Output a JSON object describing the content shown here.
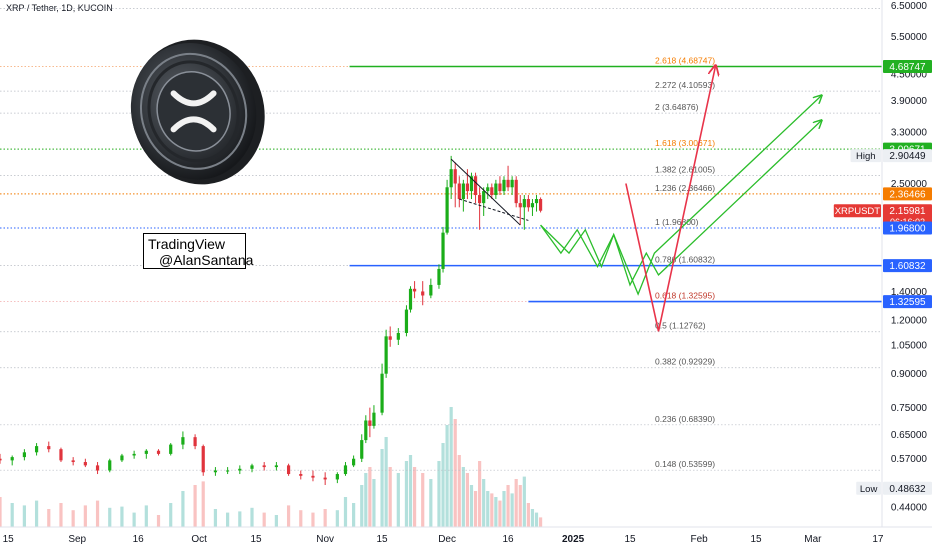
{
  "header": {
    "symbol": "XRP / Tether, 1D, KUCOIN"
  },
  "watermark": {
    "line1": "TradingView",
    "line2": "@AlanSantana"
  },
  "colors": {
    "candle_up": "#26a69a",
    "candle_up_bright": "#1aad19",
    "candle_down": "#e0343d",
    "price_red": "#e53935",
    "green_level": "#20b020",
    "blue_level": "#2962ff",
    "orange_level": "#f57c00",
    "fib_text": "#555555",
    "fib_orange": "#f57c00",
    "arrow_red": "#e8344a",
    "arrow_green": "#2bbd2b"
  },
  "chart_data": {
    "type": "candlestick",
    "title": "",
    "yscale": "log",
    "ylim": [
      0.395,
      6.7
    ],
    "y_ticks": [
      "6.50000",
      "5.50000",
      "4.50000",
      "3.90000",
      "3.30000",
      "2.90000",
      "2.50000",
      "1.40000",
      "1.20000",
      "1.05000",
      "0.90000",
      "0.75000",
      "0.65000",
      "0.57000",
      "0.44000"
    ],
    "x_ticks": [
      "15",
      "Sep",
      "16",
      "Oct",
      "15",
      "Nov",
      "15",
      "Dec",
      "16",
      "2025",
      "15",
      "Feb",
      "15",
      "Mar",
      "17"
    ],
    "x_range_dates": [
      "2024-08-13",
      "2025-03-18"
    ],
    "fib_levels": [
      {
        "ratio": "2.618",
        "text": "2.618 (4.68747)",
        "value": 4.68747,
        "color": "orange"
      },
      {
        "ratio": "2.272",
        "text": "2.272 (4.10593)",
        "value": 4.10593,
        "color": "gray"
      },
      {
        "ratio": "2",
        "text": "2 (3.64876)",
        "value": 3.64876,
        "color": "gray"
      },
      {
        "ratio": "1.618",
        "text": "1.618 (3.00671)",
        "value": 3.00671,
        "color": "orange"
      },
      {
        "ratio": "1.382",
        "text": "1.382 (2.61005)",
        "value": 2.61005,
        "color": "gray"
      },
      {
        "ratio": "1.236",
        "text": "1.236 (2.36466)",
        "value": 2.36466,
        "color": "gray"
      },
      {
        "ratio": "1",
        "text": "1 (1.96800)",
        "value": 1.968,
        "color": "gray"
      },
      {
        "ratio": "0.786",
        "text": "0.786 (1.60832)",
        "value": 1.60832,
        "color": "gray"
      },
      {
        "ratio": "0.618",
        "text": "0.618 (1.32595)",
        "value": 1.32595,
        "color": "red"
      },
      {
        "ratio": "0.5",
        "text": "0.5 (1.12762)",
        "value": 1.12762,
        "color": "gray"
      },
      {
        "ratio": "0.382",
        "text": "0.382 (0.92929)",
        "value": 0.92929,
        "color": "gray"
      },
      {
        "ratio": "0.236",
        "text": "0.236 (0.68390)",
        "value": 0.6839,
        "color": "gray"
      },
      {
        "ratio": "0.148",
        "text": "0.148 (0.53599)",
        "value": 0.53599,
        "color": "gray"
      }
    ],
    "price_badges": [
      {
        "text": "4.68747",
        "value": 4.68747,
        "bg": "#22b022",
        "fg": "#ffffff"
      },
      {
        "text": "3.00671",
        "value": 3.00671,
        "bg": "#22b022",
        "fg": "#ffffff"
      },
      {
        "text": "2.90449",
        "value": 2.90449,
        "bg": "#eceff3",
        "fg": "#131722",
        "tag": "High"
      },
      {
        "text": "2.36466",
        "value": 2.36466,
        "bg": "#f57c00",
        "fg": "#ffffff"
      },
      {
        "text": "2.15981",
        "value": 2.15981,
        "bg": "#e53935",
        "fg": "#ffffff",
        "tag": "XRPUSDT",
        "sub": "06:16:02"
      },
      {
        "text": "1.96800",
        "value": 1.968,
        "bg": "#2962ff",
        "fg": "#ffffff"
      },
      {
        "text": "1.60832",
        "value": 1.60832,
        "bg": "#2962ff",
        "fg": "#ffffff"
      },
      {
        "text": "1.32595",
        "value": 1.32595,
        "bg": "#2962ff",
        "fg": "#ffffff"
      },
      {
        "text": "0.48632",
        "value": 0.48632,
        "bg": "#eceff3",
        "fg": "#131722",
        "tag": "Low"
      }
    ],
    "horizontal_lines": [
      {
        "value": 4.68747,
        "style": "solid",
        "color": "green",
        "from_date": "2024-11-07"
      },
      {
        "value": 3.00671,
        "style": "dotted",
        "color": "green"
      },
      {
        "value": 2.36466,
        "style": "dotted",
        "color": "orange"
      },
      {
        "value": 1.968,
        "style": "dotted",
        "color": "blue"
      },
      {
        "value": 1.60832,
        "style": "solid",
        "color": "blue",
        "from_date": "2024-11-07"
      },
      {
        "value": 1.32595,
        "style": "solid",
        "color": "blue",
        "from_date": "2024-12-21"
      }
    ],
    "candles": [
      {
        "d": "2024-08-13",
        "o": 0.57,
        "h": 0.585,
        "l": 0.555,
        "c": 0.565
      },
      {
        "d": "2024-08-16",
        "o": 0.565,
        "h": 0.58,
        "l": 0.55,
        "c": 0.575
      },
      {
        "d": "2024-08-19",
        "o": 0.575,
        "h": 0.6,
        "l": 0.565,
        "c": 0.59
      },
      {
        "d": "2024-08-22",
        "o": 0.59,
        "h": 0.62,
        "l": 0.58,
        "c": 0.61
      },
      {
        "d": "2024-08-25",
        "o": 0.61,
        "h": 0.625,
        "l": 0.59,
        "c": 0.6
      },
      {
        "d": "2024-08-28",
        "o": 0.6,
        "h": 0.605,
        "l": 0.56,
        "c": 0.565
      },
      {
        "d": "2024-08-31",
        "o": 0.565,
        "h": 0.575,
        "l": 0.55,
        "c": 0.56
      },
      {
        "d": "2024-09-03",
        "o": 0.56,
        "h": 0.57,
        "l": 0.545,
        "c": 0.55
      },
      {
        "d": "2024-09-06",
        "o": 0.55,
        "h": 0.56,
        "l": 0.525,
        "c": 0.535
      },
      {
        "d": "2024-09-09",
        "o": 0.535,
        "h": 0.57,
        "l": 0.53,
        "c": 0.565
      },
      {
        "d": "2024-09-12",
        "o": 0.565,
        "h": 0.585,
        "l": 0.56,
        "c": 0.58
      },
      {
        "d": "2024-09-15",
        "o": 0.58,
        "h": 0.595,
        "l": 0.57,
        "c": 0.585
      },
      {
        "d": "2024-09-18",
        "o": 0.585,
        "h": 0.6,
        "l": 0.57,
        "c": 0.595
      },
      {
        "d": "2024-09-21",
        "o": 0.595,
        "h": 0.6,
        "l": 0.58,
        "c": 0.585
      },
      {
        "d": "2024-09-24",
        "o": 0.585,
        "h": 0.62,
        "l": 0.58,
        "c": 0.615
      },
      {
        "d": "2024-09-27",
        "o": 0.615,
        "h": 0.66,
        "l": 0.6,
        "c": 0.64
      },
      {
        "d": "2024-09-30",
        "o": 0.64,
        "h": 0.65,
        "l": 0.6,
        "c": 0.61
      },
      {
        "d": "2024-10-02",
        "o": 0.61,
        "h": 0.615,
        "l": 0.52,
        "c": 0.53
      },
      {
        "d": "2024-10-05",
        "o": 0.53,
        "h": 0.545,
        "l": 0.52,
        "c": 0.535
      },
      {
        "d": "2024-10-08",
        "o": 0.535,
        "h": 0.545,
        "l": 0.525,
        "c": 0.535
      },
      {
        "d": "2024-10-11",
        "o": 0.535,
        "h": 0.55,
        "l": 0.525,
        "c": 0.54
      },
      {
        "d": "2024-10-14",
        "o": 0.54,
        "h": 0.555,
        "l": 0.53,
        "c": 0.55
      },
      {
        "d": "2024-10-17",
        "o": 0.55,
        "h": 0.56,
        "l": 0.535,
        "c": 0.545
      },
      {
        "d": "2024-10-20",
        "o": 0.545,
        "h": 0.56,
        "l": 0.535,
        "c": 0.55
      },
      {
        "d": "2024-10-23",
        "o": 0.55,
        "h": 0.555,
        "l": 0.52,
        "c": 0.525
      },
      {
        "d": "2024-10-26",
        "o": 0.525,
        "h": 0.535,
        "l": 0.51,
        "c": 0.52
      },
      {
        "d": "2024-10-29",
        "o": 0.52,
        "h": 0.535,
        "l": 0.505,
        "c": 0.515
      },
      {
        "d": "2024-11-01",
        "o": 0.515,
        "h": 0.53,
        "l": 0.495,
        "c": 0.51
      },
      {
        "d": "2024-11-04",
        "o": 0.51,
        "h": 0.53,
        "l": 0.5,
        "c": 0.525
      },
      {
        "d": "2024-11-06",
        "o": 0.525,
        "h": 0.56,
        "l": 0.52,
        "c": 0.55
      },
      {
        "d": "2024-11-08",
        "o": 0.55,
        "h": 0.58,
        "l": 0.545,
        "c": 0.57
      },
      {
        "d": "2024-11-10",
        "o": 0.57,
        "h": 0.65,
        "l": 0.56,
        "c": 0.63
      },
      {
        "d": "2024-11-11",
        "o": 0.63,
        "h": 0.72,
        "l": 0.62,
        "c": 0.7
      },
      {
        "d": "2024-11-12",
        "o": 0.7,
        "h": 0.75,
        "l": 0.64,
        "c": 0.68
      },
      {
        "d": "2024-11-13",
        "o": 0.68,
        "h": 0.76,
        "l": 0.67,
        "c": 0.73
      },
      {
        "d": "2024-11-15",
        "o": 0.73,
        "h": 0.95,
        "l": 0.72,
        "c": 0.9
      },
      {
        "d": "2024-11-16",
        "o": 0.9,
        "h": 1.14,
        "l": 0.88,
        "c": 1.1
      },
      {
        "d": "2024-11-17",
        "o": 1.1,
        "h": 1.16,
        "l": 1.04,
        "c": 1.08
      },
      {
        "d": "2024-11-19",
        "o": 1.08,
        "h": 1.15,
        "l": 1.05,
        "c": 1.12
      },
      {
        "d": "2024-11-21",
        "o": 1.12,
        "h": 1.3,
        "l": 1.1,
        "c": 1.27
      },
      {
        "d": "2024-11-22",
        "o": 1.27,
        "h": 1.44,
        "l": 1.25,
        "c": 1.42
      },
      {
        "d": "2024-11-23",
        "o": 1.42,
        "h": 1.48,
        "l": 1.35,
        "c": 1.4
      },
      {
        "d": "2024-11-25",
        "o": 1.4,
        "h": 1.48,
        "l": 1.3,
        "c": 1.37
      },
      {
        "d": "2024-11-27",
        "o": 1.37,
        "h": 1.5,
        "l": 1.35,
        "c": 1.45
      },
      {
        "d": "2024-11-29",
        "o": 1.45,
        "h": 1.62,
        "l": 1.42,
        "c": 1.58
      },
      {
        "d": "2024-11-30",
        "o": 1.58,
        "h": 1.98,
        "l": 1.55,
        "c": 1.92
      },
      {
        "d": "2024-12-01",
        "o": 1.92,
        "h": 2.55,
        "l": 1.9,
        "c": 2.45
      },
      {
        "d": "2024-12-02",
        "o": 2.45,
        "h": 2.9,
        "l": 2.3,
        "c": 2.7
      },
      {
        "d": "2024-12-03",
        "o": 2.7,
        "h": 2.8,
        "l": 2.2,
        "c": 2.5
      },
      {
        "d": "2024-12-04",
        "o": 2.5,
        "h": 2.6,
        "l": 2.2,
        "c": 2.3
      },
      {
        "d": "2024-12-05",
        "o": 2.3,
        "h": 2.55,
        "l": 2.15,
        "c": 2.5
      },
      {
        "d": "2024-12-06",
        "o": 2.5,
        "h": 2.7,
        "l": 2.3,
        "c": 2.4
      },
      {
        "d": "2024-12-07",
        "o": 2.4,
        "h": 2.65,
        "l": 2.3,
        "c": 2.6
      },
      {
        "d": "2024-12-08",
        "o": 2.6,
        "h": 2.65,
        "l": 2.25,
        "c": 2.35
      },
      {
        "d": "2024-12-09",
        "o": 2.35,
        "h": 2.45,
        "l": 1.95,
        "c": 2.25
      },
      {
        "d": "2024-12-10",
        "o": 2.25,
        "h": 2.45,
        "l": 2.1,
        "c": 2.4
      },
      {
        "d": "2024-12-11",
        "o": 2.4,
        "h": 2.5,
        "l": 2.3,
        "c": 2.45
      },
      {
        "d": "2024-12-12",
        "o": 2.45,
        "h": 2.5,
        "l": 2.3,
        "c": 2.35
      },
      {
        "d": "2024-12-13",
        "o": 2.35,
        "h": 2.55,
        "l": 2.3,
        "c": 2.5
      },
      {
        "d": "2024-12-14",
        "o": 2.5,
        "h": 2.6,
        "l": 2.35,
        "c": 2.4
      },
      {
        "d": "2024-12-15",
        "o": 2.4,
        "h": 2.6,
        "l": 2.35,
        "c": 2.55
      },
      {
        "d": "2024-12-16",
        "o": 2.55,
        "h": 2.75,
        "l": 2.4,
        "c": 2.45
      },
      {
        "d": "2024-12-17",
        "o": 2.45,
        "h": 2.6,
        "l": 2.35,
        "c": 2.55
      },
      {
        "d": "2024-12-18",
        "o": 2.55,
        "h": 2.6,
        "l": 2.2,
        "c": 2.25
      },
      {
        "d": "2024-12-19",
        "o": 2.25,
        "h": 2.35,
        "l": 2.0,
        "c": 2.2
      },
      {
        "d": "2024-12-20",
        "o": 2.2,
        "h": 2.35,
        "l": 1.95,
        "c": 2.3
      },
      {
        "d": "2024-12-21",
        "o": 2.3,
        "h": 2.35,
        "l": 2.15,
        "c": 2.2
      },
      {
        "d": "2024-12-22",
        "o": 2.2,
        "h": 2.3,
        "l": 2.1,
        "c": 2.25
      },
      {
        "d": "2024-12-23",
        "o": 2.25,
        "h": 2.35,
        "l": 2.15,
        "c": 2.3
      },
      {
        "d": "2024-12-24",
        "o": 2.3,
        "h": 2.32,
        "l": 2.14,
        "c": 2.16
      }
    ],
    "volume": [
      {
        "d": "2024-08-13",
        "v": 0.25
      },
      {
        "d": "2024-08-16",
        "v": 0.2
      },
      {
        "d": "2024-08-19",
        "v": 0.18
      },
      {
        "d": "2024-08-22",
        "v": 0.22
      },
      {
        "d": "2024-08-25",
        "v": 0.15
      },
      {
        "d": "2024-08-28",
        "v": 0.2
      },
      {
        "d": "2024-08-31",
        "v": 0.14
      },
      {
        "d": "2024-09-03",
        "v": 0.18
      },
      {
        "d": "2024-09-06",
        "v": 0.22
      },
      {
        "d": "2024-09-09",
        "v": 0.16
      },
      {
        "d": "2024-09-12",
        "v": 0.17
      },
      {
        "d": "2024-09-15",
        "v": 0.12
      },
      {
        "d": "2024-09-18",
        "v": 0.18
      },
      {
        "d": "2024-09-21",
        "v": 0.1
      },
      {
        "d": "2024-09-24",
        "v": 0.2
      },
      {
        "d": "2024-09-27",
        "v": 0.3
      },
      {
        "d": "2024-09-30",
        "v": 0.35
      },
      {
        "d": "2024-10-02",
        "v": 0.38
      },
      {
        "d": "2024-10-05",
        "v": 0.15
      },
      {
        "d": "2024-10-08",
        "v": 0.12
      },
      {
        "d": "2024-10-11",
        "v": 0.13
      },
      {
        "d": "2024-10-14",
        "v": 0.16
      },
      {
        "d": "2024-10-17",
        "v": 0.12
      },
      {
        "d": "2024-10-20",
        "v": 0.1
      },
      {
        "d": "2024-10-23",
        "v": 0.18
      },
      {
        "d": "2024-10-26",
        "v": 0.14
      },
      {
        "d": "2024-10-29",
        "v": 0.12
      },
      {
        "d": "2024-11-01",
        "v": 0.15
      },
      {
        "d": "2024-11-04",
        "v": 0.14
      },
      {
        "d": "2024-11-06",
        "v": 0.25
      },
      {
        "d": "2024-11-08",
        "v": 0.2
      },
      {
        "d": "2024-11-10",
        "v": 0.35
      },
      {
        "d": "2024-11-11",
        "v": 0.45
      },
      {
        "d": "2024-11-12",
        "v": 0.5
      },
      {
        "d": "2024-11-13",
        "v": 0.4
      },
      {
        "d": "2024-11-15",
        "v": 0.65
      },
      {
        "d": "2024-11-16",
        "v": 0.75
      },
      {
        "d": "2024-11-17",
        "v": 0.5
      },
      {
        "d": "2024-11-19",
        "v": 0.45
      },
      {
        "d": "2024-11-21",
        "v": 0.55
      },
      {
        "d": "2024-11-22",
        "v": 0.6
      },
      {
        "d": "2024-11-23",
        "v": 0.5
      },
      {
        "d": "2024-11-25",
        "v": 0.45
      },
      {
        "d": "2024-11-27",
        "v": 0.4
      },
      {
        "d": "2024-11-29",
        "v": 0.55
      },
      {
        "d": "2024-11-30",
        "v": 0.7
      },
      {
        "d": "2024-12-01",
        "v": 0.85
      },
      {
        "d": "2024-12-02",
        "v": 1.0
      },
      {
        "d": "2024-12-03",
        "v": 0.9
      },
      {
        "d": "2024-12-04",
        "v": 0.6
      },
      {
        "d": "2024-12-05",
        "v": 0.5
      },
      {
        "d": "2024-12-06",
        "v": 0.45
      },
      {
        "d": "2024-12-07",
        "v": 0.35
      },
      {
        "d": "2024-12-08",
        "v": 0.3
      },
      {
        "d": "2024-12-09",
        "v": 0.55
      },
      {
        "d": "2024-12-10",
        "v": 0.4
      },
      {
        "d": "2024-12-11",
        "v": 0.3
      },
      {
        "d": "2024-12-12",
        "v": 0.28
      },
      {
        "d": "2024-12-13",
        "v": 0.25
      },
      {
        "d": "2024-12-14",
        "v": 0.22
      },
      {
        "d": "2024-12-15",
        "v": 0.3
      },
      {
        "d": "2024-12-16",
        "v": 0.35
      },
      {
        "d": "2024-12-17",
        "v": 0.28
      },
      {
        "d": "2024-12-18",
        "v": 0.4
      },
      {
        "d": "2024-12-19",
        "v": 0.35
      },
      {
        "d": "2024-12-20",
        "v": 0.42
      },
      {
        "d": "2024-12-21",
        "v": 0.2
      },
      {
        "d": "2024-12-22",
        "v": 0.15
      },
      {
        "d": "2024-12-23",
        "v": 0.12
      },
      {
        "d": "2024-12-24",
        "v": 0.08
      }
    ],
    "projections": {
      "red_arrow": [
        [
          "2025-01-14",
          2.5
        ],
        [
          "2025-01-22",
          1.13
        ],
        [
          "2025-02-05",
          4.68747
        ]
      ],
      "green_zigzag_1": [
        [
          "2024-12-24",
          2.0
        ],
        [
          "2024-12-31",
          1.72
        ],
        [
          "2025-01-04",
          1.95
        ],
        [
          "2025-01-08",
          1.6
        ],
        [
          "2025-01-11",
          1.9
        ],
        [
          "2025-01-15",
          1.45
        ],
        [
          "2025-01-19",
          1.72
        ],
        [
          "2025-01-22",
          1.53
        ],
        [
          "2025-03-03",
          3.5
        ]
      ],
      "green_zigzag_2": [
        [
          "2024-12-24",
          2.0
        ],
        [
          "2024-12-29",
          1.72
        ],
        [
          "2025-01-02",
          1.95
        ],
        [
          "2025-01-07",
          1.6
        ],
        [
          "2025-01-11",
          1.9
        ],
        [
          "2025-01-17",
          1.38
        ],
        [
          "2025-01-21",
          1.72
        ],
        [
          "2025-03-03",
          4.0
        ]
      ]
    },
    "triangle_pattern": {
      "upper": [
        [
          "2024-12-02",
          2.85
        ],
        [
          "2024-12-19",
          2.0
        ]
      ],
      "lower": [
        [
          "2024-12-04",
          2.3
        ],
        [
          "2024-12-21",
          2.05
        ]
      ]
    }
  }
}
